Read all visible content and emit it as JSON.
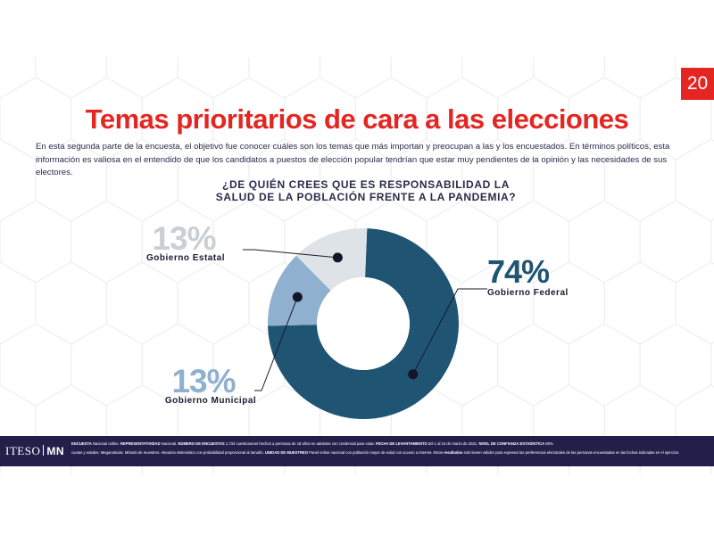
{
  "page_number": "20",
  "title": "Temas prioritarios de cara a las elecciones",
  "intro": "En esta segunda parte de la encuesta, el objetivo fue conocer cuáles son los temas que más importan y preocupan a las y los encuestados. En términos políticos, esta información es valiosa en el entendido de que los candidatos a puestos de elección popular tendrían que estar muy pendientes de la opinión y las necesidades de sus electores.",
  "question_line1": "¿DE QUIÉN CREES QUE ES RESPONSABILIDAD LA",
  "question_line2": "SALUD DE LA POBLACIÓN FRENTE A LA PANDEMIA?",
  "chart_data": {
    "type": "pie",
    "title": "¿DE QUIÉN CREES QUE ES RESPONSABILIDAD LA SALUD DE LA POBLACIÓN FRENTE A LA PANDEMIA?",
    "style": "donut",
    "slices": [
      {
        "label": "Gobierno Federal",
        "value": 74,
        "value_label": "74%",
        "color": "#1f5473",
        "text_color": "#1f5473"
      },
      {
        "label": "Gobierno Municipal",
        "value": 13,
        "value_label": "13%",
        "color": "#8fb0cf",
        "text_color": "#8fb0cf"
      },
      {
        "label": "Gobierno Estatal",
        "value": 13,
        "value_label": "13%",
        "color": "#dde3e6",
        "text_color": "#c9cfd3"
      }
    ]
  },
  "footer": {
    "logo_left": "ITESO",
    "logo_right": "MN",
    "line1": [
      {
        "k": "ENCUESTA",
        "v": " Nacional online. "
      },
      {
        "k": "REPRESENTATIVIDAD",
        "v": " Nacional. "
      },
      {
        "k": "NÚMERO DE ENCUESTAS",
        "v": " 1,734 cuestionarios hechos a personas de 18 años en adelante con credencial para votar. "
      },
      {
        "k": "FECHA DE LEVANTAMIENTO",
        "v": " del 1 al 16 de marzo de 2021. "
      },
      {
        "k": "NIVEL DE CONFIANZA ESTADÍSTICA",
        "v": " 95%"
      }
    ],
    "line2": [
      {
        "k": "",
        "v": "cuotas y edades. Meganoticias. Método de muestreo: Aleatorio sistemático con probabilidad proporcional al tamaño. "
      },
      {
        "k": "UNIDAD DE MUESTREO",
        "v": " Panel online nacional con población mayor de edad con acceso a internet. "
      },
      {
        "k": "",
        "v": "Estos "
      },
      {
        "k": "resultados",
        "v": " solo tienen validez para expresar las preferencias electorales de las personas encuestadas en las fechas indicadas en el ejercicio."
      }
    ]
  },
  "colors": {
    "accent": "#e52521",
    "footer_bg": "#241f4a",
    "text": "#2b2b4a"
  }
}
